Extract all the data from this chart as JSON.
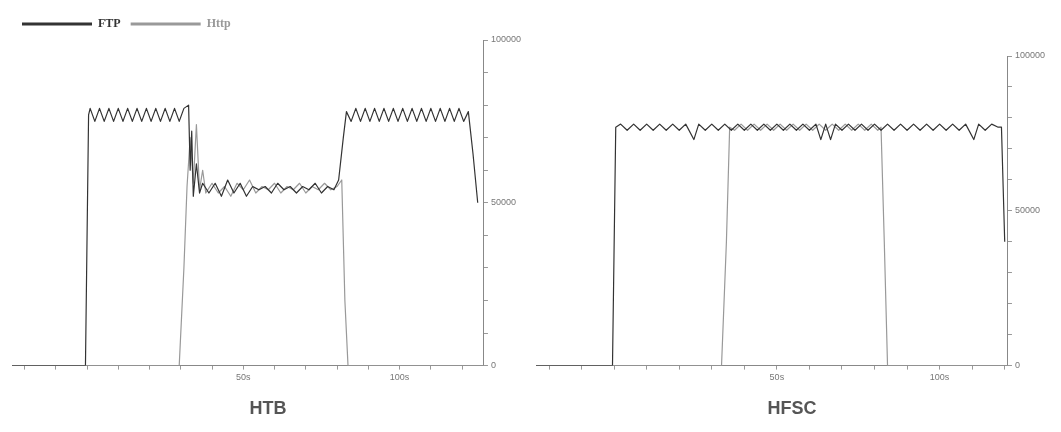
{
  "chart_data": [
    {
      "type": "line",
      "title": "HTB",
      "legend": "top left",
      "xlim": [
        -24,
        127
      ],
      "ylim": [
        0,
        100000
      ],
      "xticks": [
        {
          "value": -20,
          "label": null
        },
        {
          "value": -10,
          "label": null
        },
        {
          "value": 0,
          "label": null
        },
        {
          "value": 10,
          "label": null
        },
        {
          "value": 20,
          "label": null
        },
        {
          "value": 30,
          "label": null
        },
        {
          "value": 40,
          "label": null
        },
        {
          "value": 50,
          "label": "50s"
        },
        {
          "value": 60,
          "label": null
        },
        {
          "value": 70,
          "label": null
        },
        {
          "value": 80,
          "label": null
        },
        {
          "value": 90,
          "label": null
        },
        {
          "value": 100,
          "label": "100s"
        },
        {
          "value": 110,
          "label": null
        },
        {
          "value": 120,
          "label": null
        }
      ],
      "yticks": [
        0,
        {
          "value": 10000,
          "label": null
        },
        {
          "value": 20000,
          "label": null
        },
        {
          "value": 30000,
          "label": null
        },
        {
          "value": 40000,
          "label": null
        },
        50000,
        {
          "value": 60000,
          "label": null
        },
        {
          "value": 70000,
          "label": null
        },
        {
          "value": 80000,
          "label": null
        },
        {
          "value": 90000,
          "label": null
        },
        100000
      ],
      "series": [
        {
          "name": "FTP",
          "color": "#333333",
          "x": [
            -24,
            -0.5,
            0.5,
            1,
            2.5,
            4,
            5.5,
            7,
            8.5,
            10,
            11.5,
            13,
            14.5,
            16,
            17.5,
            19,
            20.5,
            22,
            23.5,
            25,
            26.5,
            28,
            29.5,
            31,
            32.5,
            33,
            33.5,
            34,
            35,
            36,
            37,
            39,
            41,
            43,
            45,
            47,
            49,
            51,
            53,
            55,
            57,
            59,
            61,
            63,
            65,
            67,
            69,
            71,
            73,
            75,
            77,
            79,
            80.5,
            82,
            83,
            84.5,
            86,
            87.5,
            89,
            90.5,
            92,
            93.5,
            95,
            96.5,
            98,
            99.5,
            101,
            102.5,
            104,
            105.5,
            107,
            108.5,
            110,
            111.5,
            113,
            114.5,
            116,
            117.5,
            119,
            120.5,
            122,
            123.5,
            125
          ],
          "values": [
            0,
            0,
            77000,
            79000,
            75000,
            79000,
            75000,
            79000,
            75000,
            79000,
            75000,
            79000,
            75000,
            79000,
            75000,
            79000,
            75000,
            79000,
            75000,
            79000,
            75000,
            79000,
            75000,
            79000,
            80000,
            60000,
            72000,
            52000,
            62000,
            53000,
            56000,
            53000,
            56000,
            52000,
            57000,
            53000,
            56000,
            52000,
            55000,
            54000,
            55000,
            53000,
            56000,
            54000,
            55000,
            53000,
            55000,
            54000,
            56000,
            53000,
            55000,
            54000,
            57000,
            70000,
            78000,
            75000,
            79000,
            75000,
            79000,
            75000,
            79000,
            75000,
            79000,
            75000,
            79000,
            75000,
            79000,
            75000,
            79000,
            75000,
            79000,
            75000,
            79000,
            75000,
            79000,
            75000,
            79000,
            75000,
            79000,
            75000,
            78000,
            65000,
            50000
          ]
        },
        {
          "name": "Http",
          "color": "#999999",
          "x": [
            -24,
            29.5,
            31,
            32,
            33,
            34,
            35,
            36,
            37,
            38,
            40,
            42,
            44,
            46,
            48,
            50,
            52,
            54,
            56,
            58,
            60,
            62,
            64,
            66,
            68,
            70,
            72,
            74,
            76,
            78,
            80,
            81.5,
            82.5,
            83.5,
            127
          ],
          "values": [
            0,
            0,
            30000,
            55000,
            70000,
            56000,
            74000,
            54000,
            60000,
            53000,
            56000,
            53000,
            55000,
            52000,
            56000,
            54000,
            57000,
            53000,
            55000,
            54000,
            56000,
            53000,
            55000,
            54000,
            56000,
            53000,
            55000,
            54000,
            56000,
            54000,
            55000,
            57000,
            20000,
            0,
            0
          ]
        }
      ]
    },
    {
      "type": "line",
      "title": "HFSC",
      "xlim": [
        -24,
        121
      ],
      "ylim": [
        0,
        100000
      ],
      "xticks": [
        {
          "value": -20,
          "label": null
        },
        {
          "value": -10,
          "label": null
        },
        {
          "value": 0,
          "label": null
        },
        {
          "value": 10,
          "label": null
        },
        {
          "value": 20,
          "label": null
        },
        {
          "value": 30,
          "label": null
        },
        {
          "value": 40,
          "label": null
        },
        {
          "value": 50,
          "label": "50s"
        },
        {
          "value": 60,
          "label": null
        },
        {
          "value": 70,
          "label": null
        },
        {
          "value": 80,
          "label": null
        },
        {
          "value": 90,
          "label": null
        },
        {
          "value": 100,
          "label": "100s"
        },
        {
          "value": 110,
          "label": null
        },
        {
          "value": 120,
          "label": null
        }
      ],
      "yticks": [
        0,
        {
          "value": 10000,
          "label": null
        },
        {
          "value": 20000,
          "label": null
        },
        {
          "value": 30000,
          "label": null
        },
        {
          "value": 40000,
          "label": null
        },
        50000,
        {
          "value": 60000,
          "label": null
        },
        {
          "value": 70000,
          "label": null
        },
        {
          "value": 80000,
          "label": null
        },
        {
          "value": 90000,
          "label": null
        },
        100000
      ],
      "series": [
        {
          "color": "#333333",
          "x": [
            -24,
            -0.5,
            0.5,
            2,
            4,
            6,
            8,
            10,
            12,
            14,
            16,
            18,
            20,
            22,
            24.5,
            26,
            28,
            30,
            32,
            34,
            36,
            38,
            40,
            42,
            44,
            46,
            48,
            50,
            52,
            54,
            56,
            58,
            60,
            62,
            63.5,
            65,
            66.5,
            68,
            70,
            72,
            74,
            76,
            78,
            80,
            82,
            84,
            86,
            88,
            90,
            92,
            94,
            96,
            98,
            100,
            102,
            104,
            106,
            108,
            110.5,
            112,
            114,
            116,
            118,
            119,
            120
          ],
          "values": [
            0,
            0,
            77000,
            78000,
            76000,
            78000,
            76000,
            78000,
            76000,
            78000,
            76000,
            78000,
            76000,
            78000,
            73000,
            78000,
            76000,
            78000,
            76000,
            78000,
            76000,
            78000,
            76000,
            78000,
            76000,
            78000,
            76000,
            78000,
            76000,
            78000,
            76000,
            78000,
            76000,
            78000,
            73000,
            78000,
            73000,
            78000,
            76000,
            78000,
            76000,
            78000,
            76000,
            78000,
            76000,
            78000,
            76000,
            78000,
            76000,
            78000,
            76000,
            78000,
            76000,
            78000,
            76000,
            78000,
            76000,
            78000,
            73000,
            78000,
            76000,
            78000,
            77000,
            77000,
            40000
          ]
        },
        {
          "color": "#999999",
          "x": [
            -24,
            33,
            34.5,
            35.5,
            37,
            39,
            41,
            43,
            45,
            47,
            49,
            51,
            53,
            55,
            57,
            59,
            61,
            63,
            65,
            67,
            69,
            71,
            73,
            75,
            77,
            79,
            81,
            82,
            83,
            84,
            121
          ],
          "values": [
            0,
            0,
            40000,
            77000,
            76000,
            78000,
            76000,
            78000,
            76000,
            78000,
            76000,
            78000,
            76000,
            78000,
            76000,
            78000,
            76000,
            78000,
            76000,
            78000,
            76000,
            78000,
            76000,
            78000,
            76000,
            78000,
            76000,
            77000,
            40000,
            0,
            0
          ]
        }
      ]
    }
  ]
}
